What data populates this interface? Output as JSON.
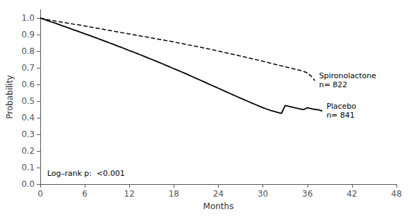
{
  "chart_data": {
    "type": "line",
    "title": "",
    "xlabel": "Months",
    "ylabel": "Probability",
    "xlim": [
      0,
      48
    ],
    "ylim": [
      0.0,
      1.05
    ],
    "xticks": [
      0,
      6,
      12,
      18,
      24,
      30,
      36,
      42,
      48
    ],
    "yticks": [
      {
        "value": 0.0,
        "label": "0.0"
      },
      0.1,
      0.2,
      0.3,
      0.4,
      0.5,
      0.6,
      0.7,
      0.8,
      0.9,
      {
        "value": 1.0,
        "label": "1.0"
      }
    ],
    "grid": false,
    "series": [
      {
        "annotation": "Spironolactone\nn= 822",
        "color": "#000000",
        "line_style": "dashed",
        "x": [
          0,
          0.5,
          1,
          1.5,
          2,
          2.5,
          3,
          3.5,
          4,
          4.5,
          5,
          5.5,
          6,
          6.5,
          7,
          7.5,
          8,
          8.5,
          9,
          9.5,
          10,
          10.5,
          11,
          11.5,
          12,
          12.5,
          13,
          13.5,
          14,
          14.5,
          15,
          15.5,
          16,
          16.5,
          17,
          17.5,
          18,
          18.5,
          19,
          19.5,
          20,
          20.5,
          21,
          21.5,
          22,
          22.5,
          23,
          23.5,
          24,
          24.5,
          25,
          25.5,
          26,
          26.5,
          27,
          27.5,
          28,
          28.5,
          29,
          29.5,
          30,
          30.5,
          31,
          31.5,
          32,
          32.5,
          33,
          33.5,
          34,
          34.5,
          35,
          35.5,
          36,
          36.5,
          37
        ],
        "values": [
          1.0,
          0.995,
          0.99,
          0.985,
          0.982,
          0.978,
          0.974,
          0.971,
          0.967,
          0.963,
          0.96,
          0.956,
          0.952,
          0.948,
          0.944,
          0.94,
          0.936,
          0.932,
          0.928,
          0.924,
          0.92,
          0.916,
          0.912,
          0.908,
          0.904,
          0.9,
          0.896,
          0.892,
          0.888,
          0.884,
          0.88,
          0.876,
          0.872,
          0.868,
          0.864,
          0.86,
          0.856,
          0.851,
          0.847,
          0.843,
          0.838,
          0.834,
          0.829,
          0.825,
          0.82,
          0.816,
          0.811,
          0.806,
          0.801,
          0.796,
          0.791,
          0.786,
          0.781,
          0.776,
          0.771,
          0.766,
          0.761,
          0.755,
          0.75,
          0.745,
          0.74,
          0.734,
          0.728,
          0.723,
          0.717,
          0.712,
          0.706,
          0.701,
          0.696,
          0.69,
          0.685,
          0.678,
          0.67,
          0.65,
          0.623
        ]
      },
      {
        "annotation": "Placebo\nn= 841",
        "color": "#000000",
        "line_style": "solid",
        "x": [
          0,
          0.5,
          1,
          1.5,
          2,
          2.5,
          3,
          3.5,
          4,
          4.5,
          5,
          5.5,
          6,
          6.5,
          7,
          7.5,
          8,
          8.5,
          9,
          9.5,
          10,
          10.5,
          11,
          11.5,
          12,
          12.5,
          13,
          13.5,
          14,
          14.5,
          15,
          15.5,
          16,
          16.5,
          17,
          17.5,
          18,
          18.5,
          19,
          19.5,
          20,
          20.5,
          21,
          21.5,
          22,
          22.5,
          23,
          23.5,
          24,
          24.5,
          25,
          25.5,
          26,
          26.5,
          27,
          27.5,
          28,
          28.5,
          29,
          29.5,
          30,
          30.5,
          31,
          31.5,
          32,
          32.5,
          33,
          33.5,
          34,
          34.5,
          35,
          35.5,
          36,
          36.2,
          36.4,
          36.6,
          36.8,
          37,
          37.5,
          38
        ],
        "values": [
          1.0,
          0.992,
          0.984,
          0.976,
          0.969,
          0.961,
          0.953,
          0.945,
          0.937,
          0.929,
          0.921,
          0.913,
          0.905,
          0.897,
          0.889,
          0.881,
          0.872,
          0.864,
          0.856,
          0.847,
          0.839,
          0.83,
          0.822,
          0.813,
          0.804,
          0.796,
          0.787,
          0.778,
          0.769,
          0.76,
          0.751,
          0.742,
          0.733,
          0.724,
          0.714,
          0.705,
          0.695,
          0.686,
          0.676,
          0.667,
          0.657,
          0.647,
          0.637,
          0.627,
          0.617,
          0.607,
          0.597,
          0.587,
          0.577,
          0.567,
          0.557,
          0.547,
          0.537,
          0.527,
          0.517,
          0.508,
          0.498,
          0.488,
          0.479,
          0.469,
          0.46,
          0.452,
          0.444,
          0.438,
          0.432,
          0.426,
          0.473,
          0.468,
          0.463,
          0.458,
          0.453,
          0.449,
          0.46,
          0.458,
          0.456,
          0.454,
          0.452,
          0.45,
          0.447,
          0.44
        ]
      }
    ],
    "annotations": [
      "Log–rank p:  <0.001"
    ]
  }
}
